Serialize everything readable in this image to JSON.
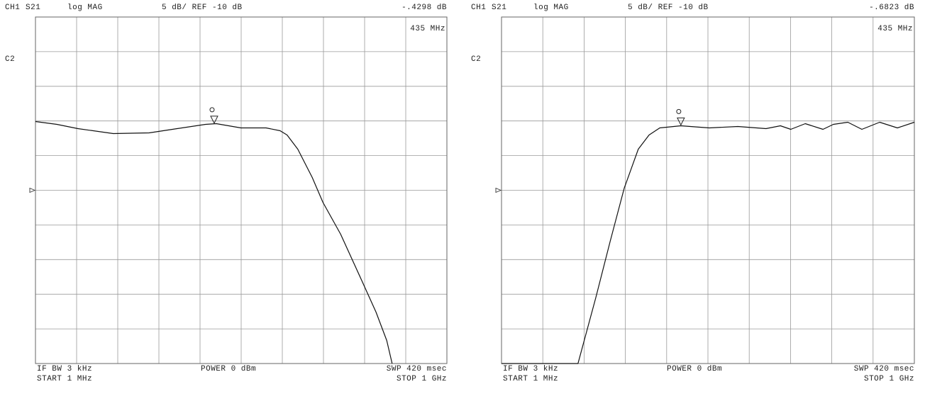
{
  "chart_data": [
    {
      "type": "line",
      "channel": "CH1",
      "parameter": "S21",
      "format": "log MAG",
      "scale_label": "5 dB/ REF -10 dB",
      "channel2": "C2",
      "if_bw": "IF BW 3 kHz",
      "power": "POWER 0 dBm",
      "sweep": "SWP 420 msec",
      "start": "START 1 MHz",
      "stop": "STOP 1 GHz",
      "ref": -10,
      "xlim": [
        1,
        1000
      ],
      "ylim": [
        -35,
        15
      ],
      "xticks": [
        1,
        100.9,
        200.8,
        300.7,
        400.6,
        500.5,
        600.4,
        700.3,
        800.2,
        900.1,
        1000
      ],
      "yticks": [
        -35,
        -30,
        -25,
        -20,
        -15,
        -10,
        -5,
        0,
        5,
        10,
        15
      ],
      "grid": true,
      "x": [
        1,
        53,
        104,
        190,
        277,
        345,
        414,
        440,
        500,
        561,
        595,
        612,
        638,
        673,
        699,
        742,
        793,
        828,
        854,
        867
      ],
      "series": [
        {
          "color": "#111111",
          "values": [
            -0.08,
            -0.49,
            -1.1,
            -1.82,
            -1.72,
            -1.1,
            -0.49,
            -0.39,
            -1.0,
            -1.0,
            -1.41,
            -2.02,
            -4.07,
            -8.16,
            -11.74,
            -16.34,
            -22.99,
            -27.59,
            -31.68,
            -35
          ]
        }
      ],
      "marker": {
        "x": 435,
        "x_label": "435 MHz",
        "value": -0.4298,
        "value_label": "-.4298 dB"
      }
    },
    {
      "type": "line",
      "channel": "CH1",
      "parameter": "S21",
      "format": "log MAG",
      "scale_label": "5 dB/ REF -10 dB",
      "channel2": "C2",
      "if_bw": "IF BW 3 kHz",
      "power": "POWER 0 dBm",
      "sweep": "SWP 420 msec",
      "start": "START 1 MHz",
      "stop": "STOP 1 GHz",
      "ref": -10,
      "xlim": [
        1,
        1000
      ],
      "ylim": [
        -35,
        15
      ],
      "xticks": [
        1,
        100.9,
        200.8,
        300.7,
        400.6,
        500.5,
        600.4,
        700.3,
        800.2,
        900.1,
        1000
      ],
      "yticks": [
        -35,
        -30,
        -25,
        -20,
        -15,
        -10,
        -5,
        0,
        5,
        10,
        15
      ],
      "grid": true,
      "x": [
        1,
        186,
        229,
        264,
        298,
        332,
        358,
        384,
        435,
        504,
        573,
        641,
        676,
        701,
        736,
        779,
        804,
        839,
        873,
        916,
        959,
        1000
      ],
      "series": [
        {
          "color": "#111111",
          "values": [
            -35,
            -35,
            -25.54,
            -17.36,
            -9.69,
            -4.07,
            -2.02,
            -1.0,
            -0.7,
            -1.0,
            -0.8,
            -1.1,
            -0.7,
            -1.21,
            -0.39,
            -1.21,
            -0.49,
            -0.18,
            -1.21,
            -0.18,
            -1.0,
            -0.18
          ]
        }
      ],
      "marker": {
        "x": 435,
        "x_label": "435 MHz",
        "value": -0.6823,
        "value_label": "-.6823 dB"
      }
    }
  ]
}
